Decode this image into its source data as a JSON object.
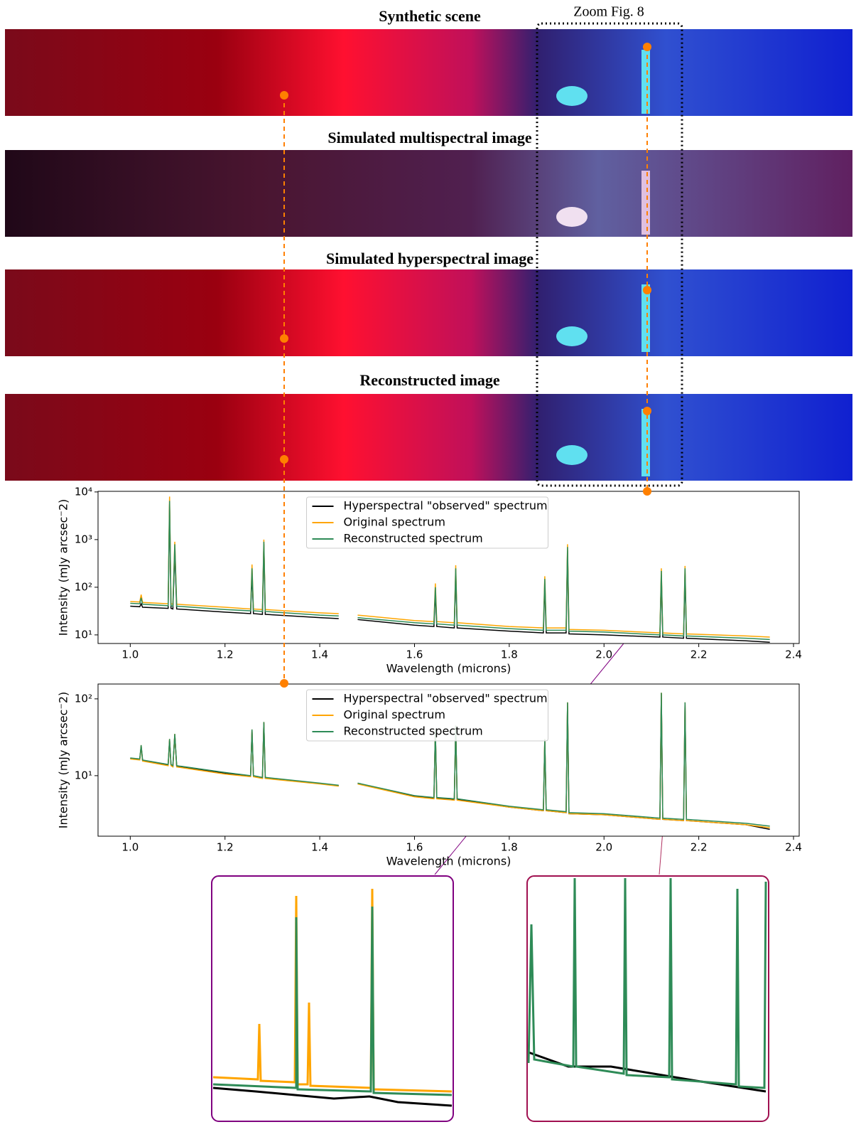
{
  "image_panels": [
    {
      "title": "Synthetic scene"
    },
    {
      "title": "Simulated multispectral image"
    },
    {
      "title": "Simulated hyperspectral image"
    },
    {
      "title": "Reconstructed image"
    }
  ],
  "zoom_label": "Zoom Fig. 8",
  "chart_data": [
    {
      "type": "line",
      "log_y": true,
      "legend": "upper center",
      "x_label": "Wavelength (microns)",
      "y_label": "Intensity (mJy arcsec⁻2)",
      "xlim": [
        0.932,
        2.412
      ],
      "ylim": [
        6.6,
        10300
      ],
      "xticks": [
        {
          "value": 1,
          "label": "1.0"
        },
        1.2,
        1.4,
        1.6,
        1.8,
        {
          "value": 2,
          "label": "2.0"
        },
        2.2,
        2.4
      ],
      "yticks": [
        {
          "value": 10,
          "label": "10¹"
        },
        {
          "value": 100,
          "label": "10²"
        },
        {
          "value": 1000,
          "label": "10³"
        },
        {
          "value": 10000,
          "label": "10⁴"
        }
      ],
      "x": [
        1.0,
        1.02,
        1.023,
        1.026,
        1.08,
        1.083,
        1.086,
        1.09,
        1.094,
        1.098,
        1.2,
        1.254,
        1.257,
        1.26,
        1.279,
        1.282,
        1.285,
        1.4,
        1.44,
        1.46,
        1.48,
        1.6,
        1.641,
        1.644,
        1.647,
        1.684,
        1.687,
        1.69,
        1.8,
        1.872,
        1.875,
        1.878,
        1.92,
        1.923,
        1.926,
        2.0,
        2.118,
        2.121,
        2.124,
        2.168,
        2.171,
        2.174,
        2.3,
        2.35
      ],
      "series": [
        {
          "name": "Hyperspectral \"observed\" spectrum",
          "color": "#000000",
          "values": [
            40,
            39,
            45,
            38,
            36,
            5500,
            36,
            35,
            600,
            35,
            30,
            28,
            200,
            28,
            27,
            800,
            27,
            23,
            22,
            null,
            21,
            16,
            15,
            80,
            15,
            14,
            200,
            14,
            12,
            11,
            120,
            11,
            11,
            600,
            10.5,
            10,
            9,
            180,
            9,
            8.5,
            200,
            8.5,
            7.5,
            7
          ]
        },
        {
          "name": "Original spectrum",
          "color": "#ffa500",
          "values": [
            50,
            49,
            70,
            48,
            45,
            8000,
            45,
            44,
            900,
            44,
            38,
            35,
            300,
            35,
            34,
            1000,
            34,
            29,
            28,
            null,
            26,
            20,
            19,
            120,
            19,
            18,
            290,
            18,
            15,
            14,
            170,
            14,
            14,
            800,
            13,
            12.5,
            11,
            250,
            11,
            10.5,
            280,
            10.5,
            9.5,
            9
          ]
        },
        {
          "name": "Reconstructed spectrum",
          "color": "#2e8b57",
          "values": [
            46,
            45,
            60,
            44,
            41,
            6500,
            41,
            40,
            800,
            40,
            34,
            32,
            250,
            32,
            31,
            900,
            31,
            26,
            25,
            null,
            23,
            18,
            17,
            100,
            17,
            16,
            250,
            16,
            13.5,
            12.5,
            150,
            12.5,
            12.5,
            700,
            12,
            11.5,
            10,
            220,
            10,
            9.5,
            250,
            9.5,
            8.5,
            8
          ]
        }
      ]
    },
    {
      "type": "line",
      "log_y": true,
      "legend": "upper center",
      "x_label": "Wavelength (microns)",
      "y_label": "Intensity (mJy arcsec⁻2)",
      "xlim": [
        0.932,
        2.412
      ],
      "ylim": [
        1.63,
        156
      ],
      "xticks": [
        {
          "value": 1,
          "label": "1.0"
        },
        1.2,
        1.4,
        1.6,
        1.8,
        {
          "value": 2,
          "label": "2.0"
        },
        2.2,
        2.4
      ],
      "yticks": [
        {
          "value": 10,
          "label": "10¹"
        },
        {
          "value": 100,
          "label": "10²"
        }
      ],
      "x": [
        1.0,
        1.02,
        1.023,
        1.026,
        1.08,
        1.083,
        1.086,
        1.09,
        1.094,
        1.098,
        1.2,
        1.254,
        1.257,
        1.26,
        1.279,
        1.282,
        1.285,
        1.4,
        1.44,
        1.46,
        1.48,
        1.6,
        1.641,
        1.644,
        1.647,
        1.684,
        1.687,
        1.69,
        1.8,
        1.872,
        1.875,
        1.878,
        1.92,
        1.923,
        1.926,
        2.0,
        2.118,
        2.121,
        2.124,
        2.168,
        2.171,
        2.174,
        2.3,
        2.35
      ],
      "series": [
        {
          "name": "Hyperspectral \"observed\" spectrum",
          "color": "#000000",
          "values": [
            16.8,
            16.3,
            24,
            15.8,
            13.8,
            29,
            13.8,
            13.3,
            34,
            13.3,
            10.8,
            9.8,
            39,
            9.8,
            9.3,
            49,
            9.3,
            7.9,
            7.4,
            null,
            7.9,
            5.4,
            5.1,
            39,
            5.1,
            4.9,
            44,
            4.9,
            3.9,
            3.5,
            29,
            3.5,
            3.3,
            88,
            3.2,
            3.1,
            2.7,
            118,
            2.7,
            2.6,
            88,
            2.6,
            2.3,
            2.0
          ]
        },
        {
          "name": "Original spectrum",
          "color": "#ffa500",
          "values": [
            16.5,
            16,
            25,
            15.5,
            13.5,
            30,
            13.5,
            13,
            35,
            13,
            10.5,
            9.7,
            40,
            9.7,
            9.2,
            50,
            9.2,
            7.8,
            7.3,
            null,
            7.8,
            5.3,
            5,
            40,
            5,
            4.8,
            45,
            4.8,
            3.9,
            3.5,
            30,
            3.5,
            3.3,
            90,
            3.2,
            3.1,
            2.7,
            120,
            2.7,
            2.6,
            90,
            2.6,
            2.3,
            2.1
          ]
        },
        {
          "name": "Reconstructed spectrum",
          "color": "#2e8b57",
          "values": [
            17,
            16.5,
            25,
            16,
            14,
            30,
            14,
            13.5,
            35,
            13.5,
            11,
            10,
            40,
            10,
            9.5,
            50,
            9.5,
            8,
            7.5,
            null,
            8,
            5.5,
            5.2,
            40,
            5.2,
            5,
            45,
            5,
            4,
            3.6,
            30,
            3.6,
            3.4,
            90,
            3.3,
            3.2,
            2.8,
            120,
            2.8,
            2.7,
            90,
            2.7,
            2.4,
            2.2
          ]
        }
      ]
    }
  ]
}
